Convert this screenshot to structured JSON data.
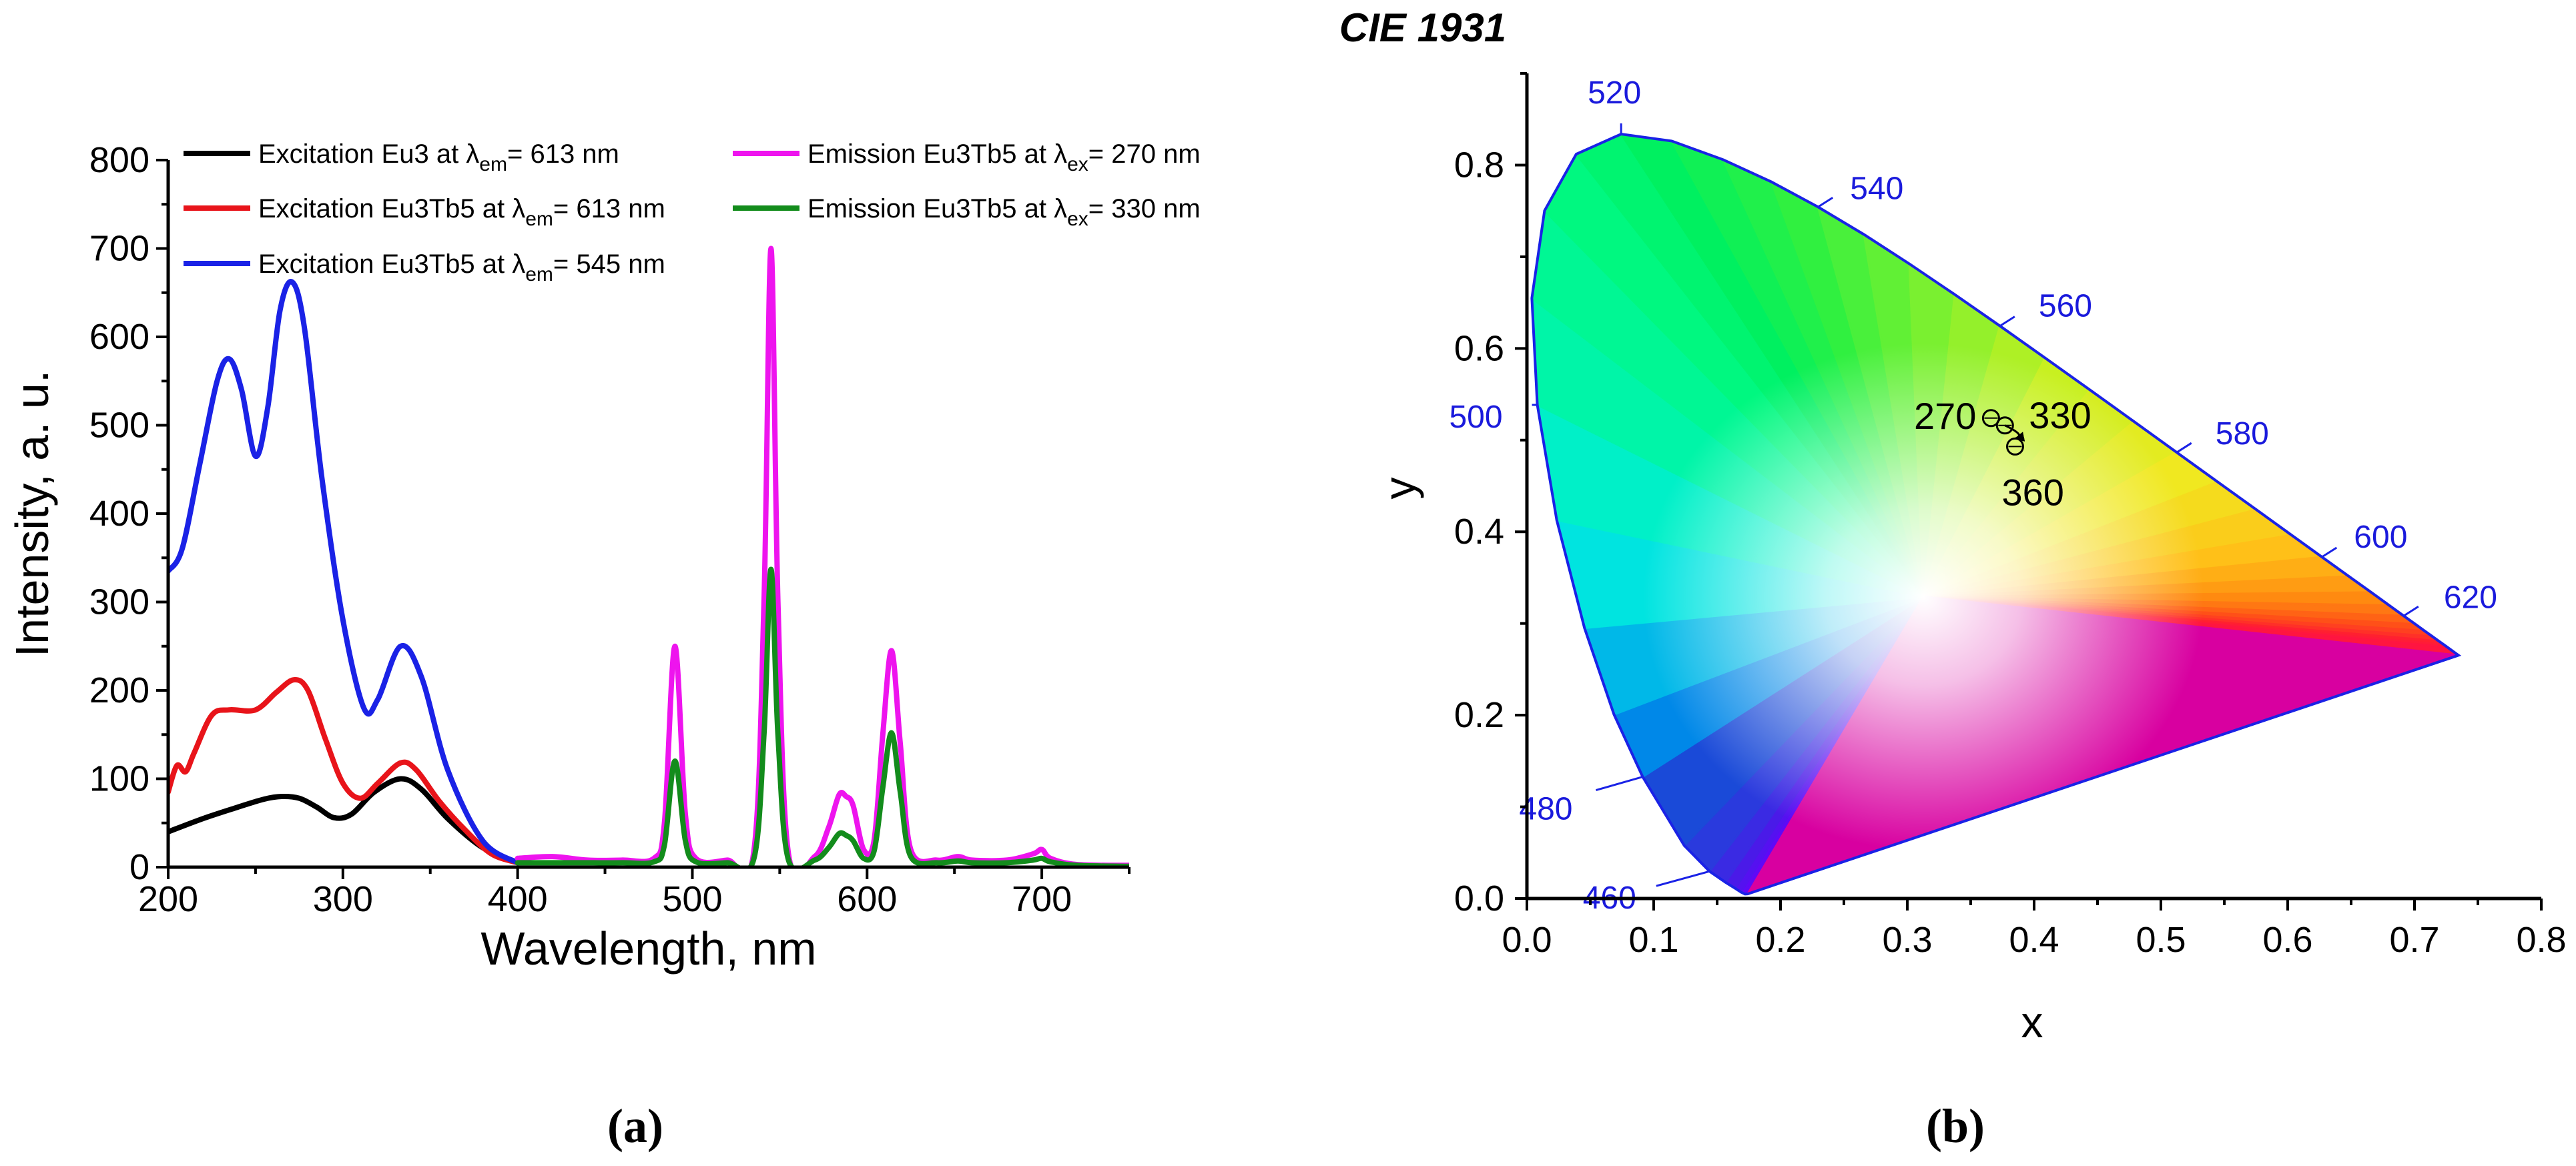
{
  "chart_data": [
    {
      "type": "line",
      "panel_label": "(a)",
      "xlabel": "Wavelength, nm",
      "ylabel": "Intensity, a. u.",
      "xlim": [
        200,
        750
      ],
      "ylim": [
        0,
        800
      ],
      "x_ticks": [
        200,
        300,
        400,
        500,
        600,
        700
      ],
      "y_ticks": [
        0,
        100,
        200,
        300,
        400,
        500,
        600,
        700,
        800
      ],
      "legend_position": "top",
      "series": [
        {
          "legend_prefix": "Excitation Eu3 at ",
          "symbol": "λ",
          "subscript": "em",
          "legend_suffix": "= 613 nm",
          "color": "#000000",
          "x": [
            200,
            220,
            240,
            255,
            265,
            275,
            285,
            295,
            305,
            318,
            333,
            345,
            360,
            380,
            400
          ],
          "y": [
            40,
            55,
            68,
            77,
            80,
            78,
            68,
            56,
            60,
            85,
            100,
            88,
            55,
            22,
            5
          ]
        },
        {
          "legend_prefix": "Excitation Eu3Tb5 at ",
          "symbol": "λ",
          "subscript": "em",
          "legend_suffix": "= 613 nm",
          "color": "#e8141a",
          "x": [
            200,
            205,
            210,
            215,
            225,
            235,
            250,
            262,
            272,
            280,
            290,
            300,
            310,
            320,
            333,
            342,
            355,
            370,
            385,
            400
          ],
          "y": [
            85,
            115,
            108,
            130,
            172,
            178,
            178,
            198,
            212,
            200,
            145,
            95,
            78,
            95,
            118,
            110,
            75,
            42,
            15,
            5
          ]
        },
        {
          "legend_prefix": "Excitation Eu3Tb5 at ",
          "symbol": "λ",
          "subscript": "em",
          "legend_suffix": "= 545 nm",
          "color": "#1a22e6",
          "x": [
            200,
            208,
            218,
            228,
            235,
            242,
            250,
            257,
            264,
            271,
            278,
            288,
            300,
            312,
            320,
            333,
            345,
            360,
            380,
            400
          ],
          "y": [
            335,
            360,
            455,
            550,
            575,
            540,
            465,
            520,
            630,
            662,
            610,
            440,
            280,
            180,
            190,
            250,
            215,
            110,
            30,
            5
          ]
        },
        {
          "legend_prefix": "Emission Eu3Tb5 at ",
          "symbol": "λ",
          "subscript": "ex",
          "legend_suffix": "= 270 nm",
          "color": "#ee14ee",
          "x": [
            400,
            420,
            440,
            460,
            478,
            484,
            490,
            496,
            502,
            520,
            535,
            541,
            545,
            549,
            555,
            570,
            578,
            584,
            588,
            592,
            598,
            604,
            609,
            614,
            619,
            625,
            640,
            652,
            660,
            680,
            695,
            700,
            705,
            720,
            750
          ],
          "y": [
            10,
            12,
            8,
            8,
            10,
            50,
            250,
            60,
            10,
            8,
            15,
            300,
            700,
            300,
            15,
            12,
            45,
            82,
            80,
            70,
            20,
            30,
            150,
            245,
            140,
            20,
            8,
            12,
            8,
            8,
            15,
            20,
            10,
            3,
            2
          ]
        },
        {
          "legend_prefix": "Emission Eu3Tb5 at ",
          "symbol": "λ",
          "subscript": "ex",
          "legend_suffix": "= 330 nm",
          "color": "#138c1c",
          "x": [
            400,
            420,
            440,
            460,
            478,
            484,
            490,
            496,
            502,
            520,
            535,
            541,
            545,
            549,
            555,
            570,
            578,
            584,
            588,
            592,
            598,
            604,
            609,
            614,
            619,
            625,
            640,
            652,
            660,
            680,
            695,
            700,
            705,
            720,
            750
          ],
          "y": [
            5,
            5,
            5,
            5,
            6,
            25,
            120,
            30,
            6,
            5,
            8,
            150,
            337,
            150,
            8,
            8,
            22,
            38,
            36,
            30,
            10,
            18,
            90,
            152,
            85,
            12,
            5,
            7,
            5,
            5,
            8,
            10,
            6,
            2,
            1
          ]
        }
      ]
    },
    {
      "type": "scatter",
      "title": "CIE 1931",
      "panel_label": "(b)",
      "xlabel": "x",
      "ylabel": "y",
      "xlim": [
        0.0,
        0.8
      ],
      "ylim": [
        0.0,
        0.9
      ],
      "x_ticks": [
        "0.0",
        "0.1",
        "0.2",
        "0.3",
        "0.4",
        "0.5",
        "0.6",
        "0.7",
        "0.8"
      ],
      "y_ticks": [
        "0.0",
        "0.2",
        "0.4",
        "0.6",
        "0.8"
      ],
      "white_point": [
        0.3127,
        0.329
      ],
      "locus": [
        [
          0.1741,
          0.005
        ],
        [
          0.172,
          0.0048
        ],
        [
          0.1689,
          0.0069
        ],
        [
          0.1644,
          0.0109
        ],
        [
          0.1566,
          0.0177
        ],
        [
          0.144,
          0.0297
        ],
        [
          0.1241,
          0.0578
        ],
        [
          0.0913,
          0.1327
        ],
        [
          0.0687,
          0.2007
        ],
        [
          0.0454,
          0.295
        ],
        [
          0.0235,
          0.4127
        ],
        [
          0.0082,
          0.5384
        ],
        [
          0.0039,
          0.6548
        ],
        [
          0.0139,
          0.7502
        ],
        [
          0.0389,
          0.812
        ],
        [
          0.0743,
          0.8338
        ],
        [
          0.1142,
          0.8262
        ],
        [
          0.1547,
          0.8059
        ],
        [
          0.1929,
          0.7816
        ],
        [
          0.2296,
          0.7543
        ],
        [
          0.2658,
          0.7243
        ],
        [
          0.3016,
          0.6923
        ],
        [
          0.3373,
          0.6589
        ],
        [
          0.3731,
          0.6245
        ],
        [
          0.4087,
          0.5896
        ],
        [
          0.4441,
          0.5547
        ],
        [
          0.4788,
          0.5202
        ],
        [
          0.5125,
          0.4866
        ],
        [
          0.5448,
          0.4544
        ],
        [
          0.5752,
          0.4242
        ],
        [
          0.6029,
          0.3965
        ],
        [
          0.627,
          0.3725
        ],
        [
          0.6482,
          0.3514
        ],
        [
          0.6658,
          0.334
        ],
        [
          0.6801,
          0.3197
        ],
        [
          0.6915,
          0.3083
        ],
        [
          0.7006,
          0.2993
        ],
        [
          0.7079,
          0.292
        ],
        [
          0.714,
          0.2859
        ],
        [
          0.719,
          0.2809
        ],
        [
          0.723,
          0.277
        ],
        [
          0.726,
          0.274
        ],
        [
          0.7347,
          0.2653
        ]
      ],
      "wavelength_labels": [
        {
          "label": "460",
          "x": 0.1441,
          "y": 0.0297
        },
        {
          "label": "480",
          "x": 0.0913,
          "y": 0.1327
        },
        {
          "label": "500",
          "x": 0.0082,
          "y": 0.5384
        },
        {
          "label": "520",
          "x": 0.0743,
          "y": 0.8338
        },
        {
          "label": "540",
          "x": 0.2296,
          "y": 0.7543
        },
        {
          "label": "560",
          "x": 0.3731,
          "y": 0.6245
        },
        {
          "label": "580",
          "x": 0.5125,
          "y": 0.4866
        },
        {
          "label": "600",
          "x": 0.627,
          "y": 0.3725
        },
        {
          "label": "620",
          "x": 0.6915,
          "y": 0.3083
        }
      ],
      "points": [
        {
          "label": "270",
          "x": 0.366,
          "y": 0.524
        },
        {
          "label": "330",
          "x": 0.377,
          "y": 0.516
        },
        {
          "label": "360",
          "x": 0.385,
          "y": 0.493
        }
      ]
    }
  ]
}
